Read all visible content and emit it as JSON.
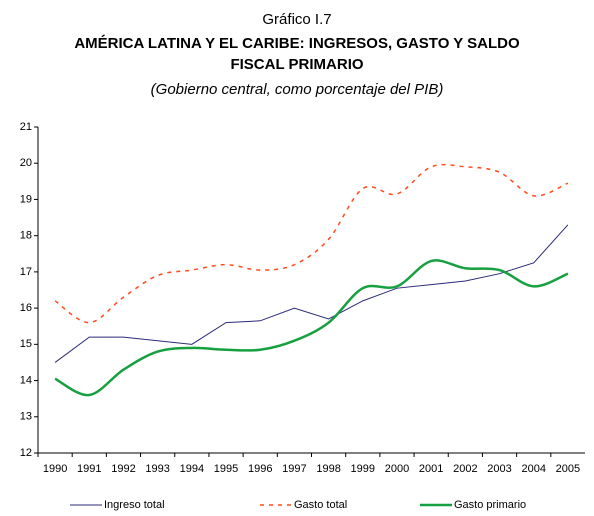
{
  "chart_data": {
    "type": "line",
    "label": "Gráfico I.7",
    "title": [
      "AMÉRICA LATINA Y EL CARIBE: INGRESOS, GASTO Y SALDO",
      "FISCAL PRIMARIO"
    ],
    "subtitle": "(Gobierno central, como porcentaje del PIB)",
    "categories": [
      "1990",
      "1991",
      "1992",
      "1993",
      "1994",
      "1995",
      "1996",
      "1997",
      "1998",
      "1999",
      "2000",
      "2001",
      "2002",
      "2003",
      "2004",
      "2005"
    ],
    "series": [
      {
        "name": "Ingreso total",
        "color": "#2a2a7a",
        "width": 1,
        "dashed": false,
        "smooth": false,
        "values": [
          14.5,
          15.2,
          15.2,
          15.1,
          15.0,
          15.6,
          15.65,
          16.0,
          15.7,
          16.2,
          16.55,
          16.65,
          16.75,
          16.95,
          17.25,
          18.3
        ]
      },
      {
        "name": "Gasto total",
        "color": "#ff4a1c",
        "width": 1.5,
        "dashed": true,
        "smooth": true,
        "values": [
          16.2,
          15.6,
          16.3,
          16.9,
          17.05,
          17.2,
          17.05,
          17.2,
          17.9,
          19.3,
          19.15,
          19.9,
          19.9,
          19.75,
          19.1,
          19.45
        ]
      },
      {
        "name": "Gasto primario",
        "color": "#16a040",
        "width": 2.5,
        "dashed": false,
        "smooth": true,
        "values": [
          14.05,
          13.6,
          14.3,
          14.8,
          14.9,
          14.85,
          14.85,
          15.1,
          15.6,
          16.55,
          16.6,
          17.3,
          17.1,
          17.05,
          16.6,
          16.95
        ]
      }
    ],
    "ylim": [
      12,
      21
    ],
    "yticks": [
      12,
      13,
      14,
      15,
      16,
      17,
      18,
      19,
      20,
      21
    ],
    "grid": false,
    "legend": "bottom"
  }
}
